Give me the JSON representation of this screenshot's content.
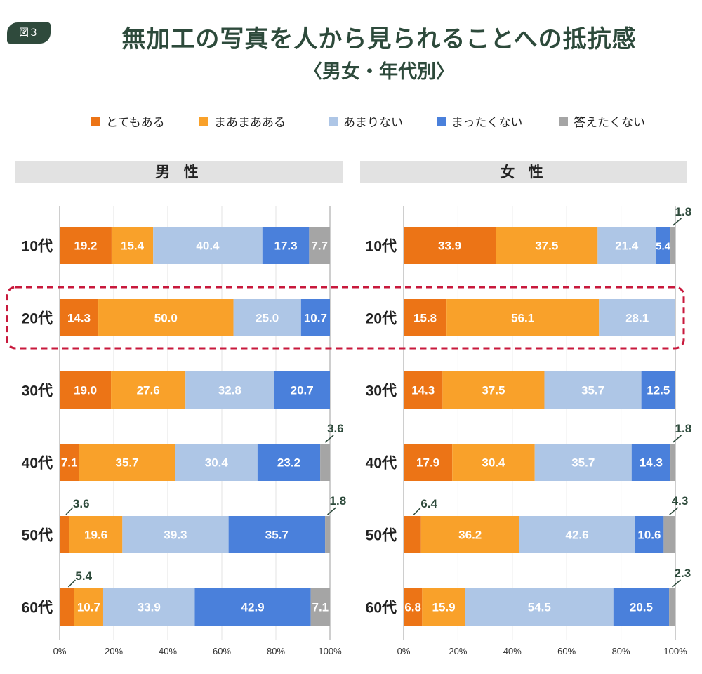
{
  "figure": {
    "badge": "図３",
    "title": "無加工の写真を人から見られることへの抵抗感",
    "subtitle": "〈男女・年代別〉"
  },
  "panels": {
    "male": "男 性",
    "female": "女 性"
  },
  "colors": {
    "とてもある": "#ec7416",
    "まあまあある": "#f9a12a",
    "あまりない": "#aec6e6",
    "まったくない": "#4a80db",
    "答えたくない": "#a5a5a5",
    "highlight": "#c8193c"
  },
  "chart_data": [
    {
      "type": "bar",
      "orientation": "horizontal",
      "stacked": true,
      "panel": "男 性",
      "categories": [
        "10代",
        "20代",
        "30代",
        "40代",
        "50代",
        "60代"
      ],
      "series": [
        {
          "name": "とてもある",
          "values": [
            19.2,
            14.3,
            19.0,
            7.1,
            3.6,
            5.4
          ]
        },
        {
          "name": "まあまあある",
          "values": [
            15.4,
            50.0,
            27.6,
            35.7,
            19.6,
            10.7
          ]
        },
        {
          "name": "あまりない",
          "values": [
            40.4,
            25.0,
            32.8,
            30.4,
            39.3,
            33.9
          ]
        },
        {
          "name": "まったくない",
          "values": [
            17.3,
            10.7,
            20.7,
            23.2,
            35.7,
            42.9
          ]
        },
        {
          "name": "答えたくない",
          "values": [
            7.7,
            null,
            null,
            3.6,
            1.8,
            7.1
          ]
        }
      ],
      "xlim": [
        0,
        100
      ],
      "xticks": [
        "0%",
        "20%",
        "40%",
        "60%",
        "80%",
        "100%"
      ],
      "highlighted_category": "20代"
    },
    {
      "type": "bar",
      "orientation": "horizontal",
      "stacked": true,
      "panel": "女 性",
      "categories": [
        "10代",
        "20代",
        "30代",
        "40代",
        "50代",
        "60代"
      ],
      "series": [
        {
          "name": "とてもある",
          "values": [
            33.9,
            15.8,
            14.3,
            17.9,
            6.4,
            6.8
          ]
        },
        {
          "name": "まあまあある",
          "values": [
            37.5,
            56.1,
            37.5,
            30.4,
            36.2,
            15.9
          ]
        },
        {
          "name": "あまりない",
          "values": [
            21.4,
            28.1,
            35.7,
            35.7,
            42.6,
            54.5
          ]
        },
        {
          "name": "まったくない",
          "values": [
            5.4,
            null,
            12.5,
            14.3,
            10.6,
            20.5
          ]
        },
        {
          "name": "答えたくない",
          "values": [
            1.8,
            null,
            null,
            1.8,
            4.3,
            2.3
          ]
        }
      ],
      "xlim": [
        0,
        100
      ],
      "xticks": [
        "0%",
        "20%",
        "40%",
        "60%",
        "80%",
        "100%"
      ],
      "highlighted_category": "20代"
    }
  ]
}
